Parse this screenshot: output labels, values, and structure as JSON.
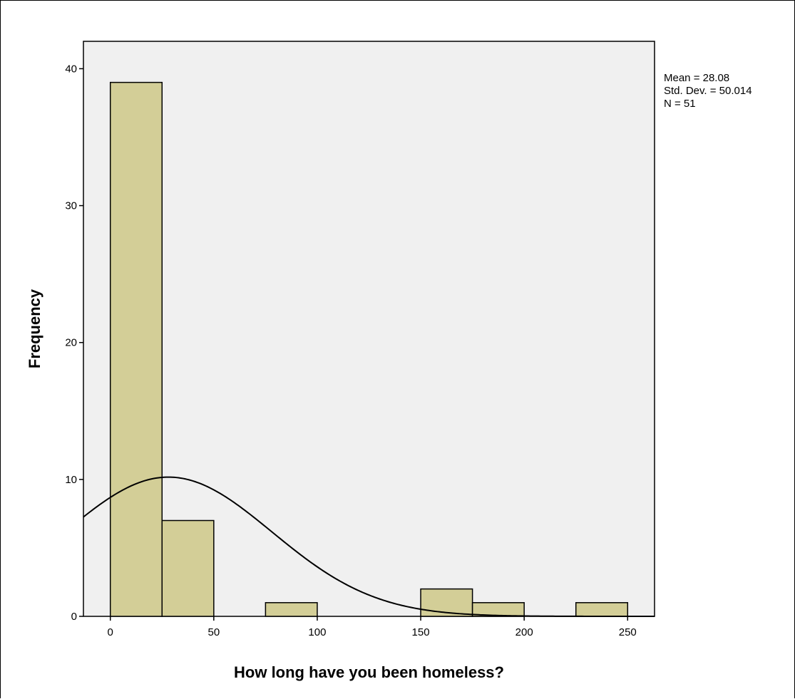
{
  "chart_data": {
    "type": "bar",
    "subtype": "histogram",
    "xlabel": "How long have you been homeless?",
    "ylabel": "Frequency",
    "xlim": [
      -13,
      263
    ],
    "ylim": [
      0,
      42
    ],
    "x_ticks": [
      0,
      50,
      100,
      150,
      200,
      250
    ],
    "y_ticks": [
      0,
      10,
      20,
      30,
      40
    ],
    "bin_width": 25,
    "bins": [
      {
        "start": 0,
        "end": 25,
        "count": 39
      },
      {
        "start": 25,
        "end": 50,
        "count": 7
      },
      {
        "start": 75,
        "end": 100,
        "count": 1
      },
      {
        "start": 150,
        "end": 175,
        "count": 2
      },
      {
        "start": 175,
        "end": 200,
        "count": 1
      },
      {
        "start": 225,
        "end": 250,
        "count": 1
      }
    ],
    "normal_curve": {
      "mean": 28.08,
      "sd": 50.014,
      "n": 51
    },
    "stats": [
      "Mean = 28.08",
      "Std. Dev. = 50.014",
      "N = 51"
    ],
    "plot_background": "#f0f0f0",
    "bar_fill": "#d3ce97",
    "bar_stroke": "#000000",
    "grid": false
  }
}
